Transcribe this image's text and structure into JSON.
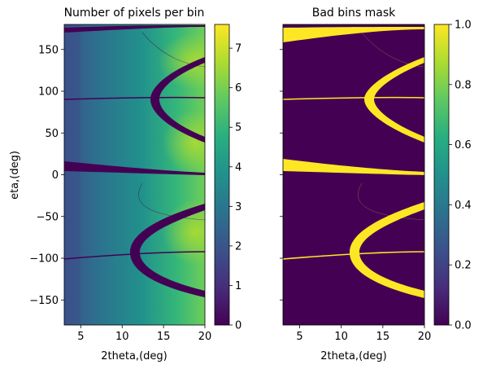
{
  "chart_data": [
    {
      "type": "heatmap",
      "title": "Number of pixels per bin",
      "xlabel": "2theta,(deg)",
      "ylabel": "eta,(deg)",
      "xlim": [
        3,
        20
      ],
      "ylim": [
        180,
        -180
      ],
      "x_ticks": [
        5,
        10,
        15,
        20
      ],
      "x_tick_labels": [
        "5",
        "10",
        "15",
        "20"
      ],
      "y_ticks": [
        -150,
        -100,
        -50,
        0,
        50,
        100,
        150
      ],
      "y_tick_labels": [
        "−150",
        "−100",
        "−50",
        "0",
        "50",
        "100",
        "150"
      ],
      "colormap": "viridis",
      "colorbar": {
        "range": [
          0,
          7.6
        ],
        "ticks": [
          0,
          1,
          2,
          3,
          4,
          5,
          6,
          7
        ],
        "tick_labels": [
          "0",
          "1",
          "2",
          "3",
          "4",
          "5",
          "6",
          "7"
        ]
      }
    },
    {
      "type": "heatmap",
      "title": "Bad bins mask",
      "xlabel": "2theta,(deg)",
      "xlim": [
        3,
        20
      ],
      "ylim": [
        180,
        -180
      ],
      "x_ticks": [
        5,
        10,
        15,
        20
      ],
      "x_tick_labels": [
        "5",
        "10",
        "15",
        "20"
      ],
      "y_ticks": [
        -150,
        -100,
        -50,
        0,
        50,
        100,
        150
      ],
      "colormap": "viridis",
      "colorbar": {
        "range": [
          0,
          1
        ],
        "ticks": [
          0,
          0.2,
          0.4,
          0.6,
          0.8,
          1.0
        ],
        "tick_labels": [
          "0.0",
          "0.2",
          "0.4",
          "0.6",
          "0.8",
          "1.0"
        ]
      }
    }
  ],
  "colors": {
    "viridis_low": "#440154",
    "viridis_mid": "#21918c",
    "viridis_high": "#fde725"
  }
}
